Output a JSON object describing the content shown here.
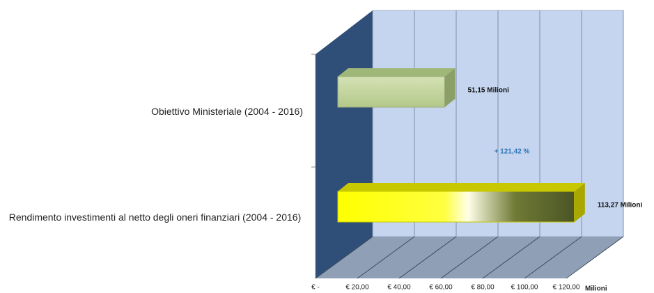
{
  "chart_data": {
    "type": "bar3d_horizontal",
    "categories": [
      "Obiettivo Ministeriale (2004 - 2016)",
      "Rendimento investimenti al netto degli oneri  finanziari (2004 - 2016)"
    ],
    "values": [
      51.15,
      113.27
    ],
    "value_labels": [
      "51,15 Milioni",
      "113,27 Milioni"
    ],
    "colors": [
      "#c4d59e",
      "#ffff00"
    ],
    "annotation": "+ 121,42 %",
    "xlabel": "Milioni",
    "xlim": [
      0,
      120
    ],
    "xticks": [
      {
        "value": 0,
        "label": "€ -"
      },
      {
        "value": 20,
        "label": "€ 20,00"
      },
      {
        "value": 40,
        "label": "€ 40,00"
      },
      {
        "value": 60,
        "label": "€ 60,00"
      },
      {
        "value": 80,
        "label": "€ 80,00"
      },
      {
        "value": 100,
        "label": "€ 100,00"
      },
      {
        "value": 120,
        "label": "€ 120,00"
      }
    ],
    "grid": true
  }
}
